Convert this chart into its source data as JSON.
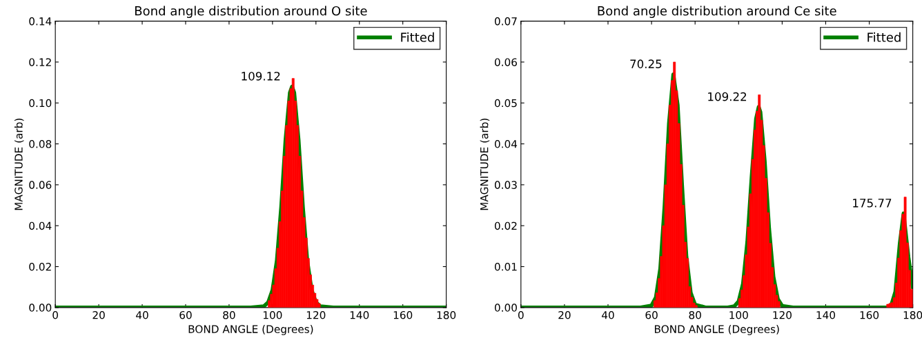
{
  "chart_data": [
    {
      "type": "histogram",
      "title": "Bond angle distribution around O site",
      "xlabel": "BOND ANGLE (Degrees)",
      "ylabel": "MAGNITUDE (arb)",
      "xlim": [
        0,
        180
      ],
      "xticks": [
        0,
        20,
        40,
        60,
        80,
        100,
        120,
        140,
        160,
        180
      ],
      "ylim": [
        0,
        0.14
      ],
      "yticks": [
        {
          "value": 0,
          "label": "0.00"
        },
        {
          "value": 0.02,
          "label": "0.02"
        },
        {
          "value": 0.04,
          "label": "0.04"
        },
        {
          "value": 0.06,
          "label": "0.06"
        },
        {
          "value": 0.08,
          "label": "0.08"
        },
        {
          "value": 0.1,
          "label": "0.10"
        },
        {
          "value": 0.12,
          "label": "0.12"
        },
        {
          "value": 0.14,
          "label": "0.14"
        }
      ],
      "grid": false,
      "legend": "top right",
      "series": [
        {
          "color": "#ff0000",
          "bins": [
            98,
            99,
            100,
            101,
            102,
            103,
            104,
            105,
            106,
            107,
            108,
            109,
            110,
            111,
            112,
            113,
            114,
            115,
            116,
            117,
            118,
            119,
            120,
            121,
            122
          ],
          "values": [
            0.0034,
            0.0065,
            0.011,
            0.019,
            0.029,
            0.042,
            0.057,
            0.074,
            0.089,
            0.101,
            0.107,
            0.112,
            0.101,
            0.089,
            0.074,
            0.057,
            0.044,
            0.034,
            0.024,
            0.016,
            0.011,
            0.007,
            0.004,
            0.002
          ]
        },
        {
          "type": "line",
          "name": "Fitted",
          "color": "#008000",
          "x": [
            0,
            90,
            96,
            98,
            100,
            102,
            104,
            106,
            108,
            109,
            110,
            112,
            114,
            116,
            118,
            120,
            122,
            128,
            180
          ],
          "values": [
            0,
            0,
            0.0006,
            0.0025,
            0.0086,
            0.023,
            0.049,
            0.082,
            0.105,
            0.108,
            0.105,
            0.082,
            0.049,
            0.023,
            0.0086,
            0.0025,
            0.0006,
            0,
            0
          ]
        }
      ],
      "annotations": [
        {
          "text": "109.12",
          "x": 109.12,
          "y": 0.108
        }
      ]
    },
    {
      "type": "histogram",
      "title": "Bond angle distribution around Ce site",
      "xlabel": "BOND ANGLE (Degrees)",
      "ylabel": "MAGNITUDE (arb)",
      "xlim": [
        0,
        180
      ],
      "xticks": [
        0,
        20,
        40,
        60,
        80,
        100,
        120,
        140,
        160,
        180
      ],
      "ylim": [
        0,
        0.07
      ],
      "yticks": [
        {
          "value": 0,
          "label": "0.00"
        },
        {
          "value": 0.01,
          "label": "0.01"
        },
        {
          "value": 0.02,
          "label": "0.02"
        },
        {
          "value": 0.03,
          "label": "0.03"
        },
        {
          "value": 0.04,
          "label": "0.04"
        },
        {
          "value": 0.05,
          "label": "0.05"
        },
        {
          "value": 0.06,
          "label": "0.06"
        },
        {
          "value": 0.07,
          "label": "0.07"
        }
      ],
      "grid": false,
      "legend": "top right",
      "series": [
        {
          "color": "#ff0000",
          "bins": [
            61,
            62,
            63,
            64,
            65,
            66,
            67,
            68,
            69,
            70,
            71,
            72,
            73,
            74,
            75,
            76,
            77,
            78,
            79,
            80,
            81
          ],
          "values": [
            0.0017,
            0.0036,
            0.0071,
            0.0125,
            0.02,
            0.03,
            0.04,
            0.0495,
            0.0555,
            0.06,
            0.053,
            0.045,
            0.035,
            0.025,
            0.016,
            0.012,
            0.0051,
            0.0025,
            0.0011,
            0.0005
          ]
        },
        {
          "color": "#ff0000",
          "bins": [
            100,
            101,
            102,
            103,
            104,
            105,
            106,
            107,
            108,
            109,
            110,
            111,
            112,
            113,
            114,
            115,
            116,
            117,
            118,
            119
          ],
          "values": [
            0.0022,
            0.0043,
            0.0078,
            0.0129,
            0.0197,
            0.0278,
            0.0362,
            0.0434,
            0.048,
            0.052,
            0.0458,
            0.0396,
            0.0316,
            0.0232,
            0.0157,
            0.0098,
            0.0056,
            0.003,
            0.0015
          ]
        },
        {
          "color": "#ff0000",
          "bins": [
            168,
            169,
            170,
            171,
            172,
            173,
            174,
            175,
            176,
            177,
            178,
            179,
            180
          ],
          "values": [
            0.0008,
            0.001,
            0.0012,
            0.0024,
            0.006,
            0.0121,
            0.0188,
            0.0228,
            0.027,
            0.0158,
            0.0091,
            0.0045
          ]
        },
        {
          "type": "line",
          "name": "Fitted",
          "color": "#008000",
          "x": [
            0,
            55,
            60,
            62,
            64,
            66,
            68,
            70,
            72,
            74,
            76,
            78,
            80,
            85,
            95,
            98,
            100,
            102,
            104,
            106,
            108,
            109.22,
            110,
            112,
            114,
            116,
            118,
            120,
            125,
            165,
            168,
            170,
            172,
            174,
            175.77,
            178,
            180
          ],
          "values": [
            0,
            0,
            0.0005,
            0.0025,
            0.0095,
            0.025,
            0.045,
            0.057,
            0.0495,
            0.03,
            0.0125,
            0.0036,
            0.0007,
            0,
            0,
            0.0003,
            0.0015,
            0.0058,
            0.0161,
            0.0321,
            0.0461,
            0.049,
            0.0478,
            0.0357,
            0.0193,
            0.0075,
            0.0021,
            0.0004,
            0,
            0,
            0,
            0.0004,
            0.0039,
            0.0155,
            0.023,
            0.0123,
            0.005
          ]
        }
      ],
      "annotations": [
        {
          "text": "70.25",
          "x": 70.25,
          "y": 0.057
        },
        {
          "text": "109.22",
          "x": 109.22,
          "y": 0.049
        },
        {
          "text": "175.77",
          "x": 175.77,
          "y": 0.023
        }
      ]
    }
  ]
}
